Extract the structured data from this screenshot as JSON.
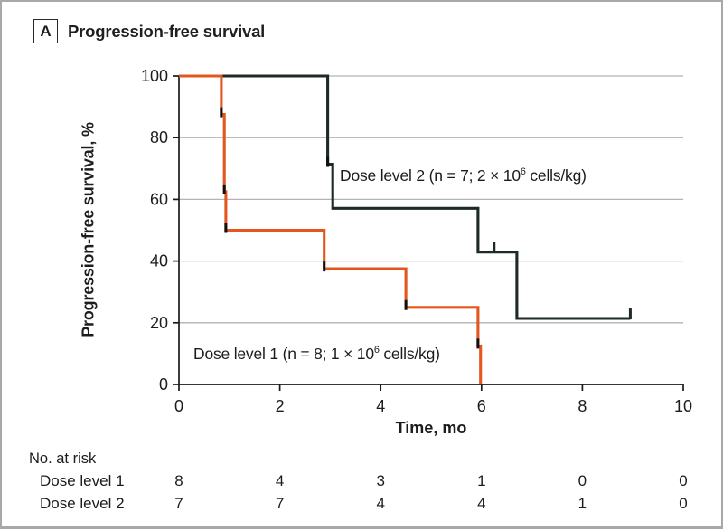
{
  "header": {
    "panel_letter": "A",
    "title": "Progression-free survival"
  },
  "colors": {
    "frame_border": "#a8a8a8",
    "axis": "#1a1a1a",
    "grid": "#b3b3b3",
    "text": "#1c1c1c",
    "event_mark": "#101010",
    "dose1": "#e1571e",
    "dose2": "#1e2a27"
  },
  "chart_data": {
    "type": "line",
    "subtype": "kaplan-meier-step",
    "title": "Progression-free survival",
    "xlabel": "Time, mo",
    "ylabel": "Progression-free survival, %",
    "xlim": [
      0,
      10
    ],
    "ylim": [
      0,
      100
    ],
    "x_ticks": [
      0,
      2,
      4,
      6,
      8,
      10
    ],
    "y_ticks": [
      0,
      20,
      40,
      60,
      80,
      100
    ],
    "grid": "horizontal gridlines at 20,40,60,80,100",
    "legend_position": "in-plot annotations",
    "series": [
      {
        "name": "Dose level 1",
        "color": "#e1571e",
        "n": 8,
        "label_parts": {
          "prefix": "Dose level 1 (n = 8; 1 × 10",
          "sup": "6",
          "suffix": " cells/kg)"
        },
        "points": [
          [
            0,
            100
          ],
          [
            0.84,
            100
          ],
          [
            0.84,
            87.5
          ],
          [
            0.9,
            87.5
          ],
          [
            0.9,
            62.5
          ],
          [
            0.93,
            62.5
          ],
          [
            0.93,
            50
          ],
          [
            2.88,
            50
          ],
          [
            2.88,
            37.5
          ],
          [
            4.5,
            37.5
          ],
          [
            4.5,
            25
          ],
          [
            5.93,
            25
          ],
          [
            5.93,
            12.5
          ],
          [
            5.98,
            12.5
          ],
          [
            5.98,
            0
          ]
        ],
        "event_marks": [
          [
            0.84,
            87.5
          ],
          [
            0.9,
            62.5
          ],
          [
            0.93,
            50
          ],
          [
            2.88,
            37.5
          ],
          [
            4.5,
            25
          ],
          [
            5.93,
            12.5
          ]
        ],
        "censor_marks": []
      },
      {
        "name": "Dose level 2",
        "color": "#1e2a27",
        "n": 7,
        "label_parts": {
          "prefix": "Dose level 2 (n = 7; 2 × 10",
          "sup": "6",
          "suffix": " cells/kg)"
        },
        "points": [
          [
            0,
            100
          ],
          [
            2.95,
            100
          ],
          [
            2.95,
            71.4
          ],
          [
            3.05,
            71.4
          ],
          [
            3.05,
            57.1
          ],
          [
            5.93,
            57.1
          ],
          [
            5.93,
            42.9
          ],
          [
            6.7,
            42.9
          ],
          [
            6.7,
            21.4
          ],
          [
            8.95,
            21.4
          ]
        ],
        "event_marks": [
          [
            2.95,
            71.4
          ]
        ],
        "censor_marks": [
          [
            6.25,
            42.9
          ],
          [
            8.95,
            21.4
          ]
        ]
      }
    ],
    "risk_table": {
      "heading": "No. at risk",
      "times": [
        0,
        2,
        4,
        6,
        8,
        10
      ],
      "rows": [
        {
          "label": "Dose level 1",
          "values": [
            8,
            4,
            3,
            1,
            0,
            0
          ]
        },
        {
          "label": "Dose level 2",
          "values": [
            7,
            7,
            4,
            4,
            1,
            0
          ]
        }
      ]
    }
  }
}
